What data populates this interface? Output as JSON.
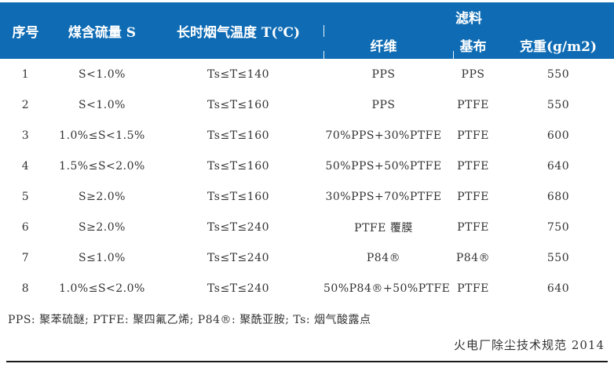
{
  "colors": {
    "header_bg": "#0f6cb4",
    "header_text": "#ffffff",
    "body_text": "#333333",
    "rule": "#1a1a1a"
  },
  "table": {
    "group_label": "滤料",
    "columns": [
      {
        "key": "index",
        "label": "序号"
      },
      {
        "key": "sulfur",
        "label": "煤含硫量 S"
      },
      {
        "key": "temperature",
        "label": "长时烟气温度 T(℃)"
      },
      {
        "key": "fiber",
        "label": "纤维"
      },
      {
        "key": "base-cloth",
        "label": "基布"
      },
      {
        "key": "weight",
        "label": "克重(g/m2)"
      }
    ],
    "rows": [
      [
        "1",
        "S<1.0%",
        "Ts≤T≤140",
        "PPS",
        "PPS",
        "550"
      ],
      [
        "2",
        "S<1.0%",
        "Ts≤T≤160",
        "PPS",
        "PTFE",
        "550"
      ],
      [
        "3",
        "1.0%≤S<1.5%",
        "Ts≤T≤160",
        "70%PPS+30%PTFE",
        "PTFE",
        "600"
      ],
      [
        "4",
        "1.5%≤S<2.0%",
        "Ts≤T≤160",
        "50%PPS+50%PTFE",
        "PTFE",
        "640"
      ],
      [
        "5",
        "S≥2.0%",
        "Ts≤T≤160",
        "30%PPS+70%PTFE",
        "PTFE",
        "680"
      ],
      [
        "6",
        "S≥2.0%",
        "Ts≤T≤240",
        "PTFE 覆膜",
        "PTFE",
        "750"
      ],
      [
        "7",
        "S≤1.0%",
        "Ts≤T≤240",
        "P84®",
        "P84®",
        "550"
      ],
      [
        "8",
        "1.0%≤S<2.0%",
        "Ts≤T≤240",
        "50%P84®+50%PTFE",
        "PTFE",
        "640"
      ]
    ]
  },
  "footnote": "PPS: 聚苯硫醚; PTFE: 聚四氟乙烯; P84®: 聚酰亚胺; Ts: 烟气酸露点",
  "source": "火电厂除尘技术规范 2014"
}
